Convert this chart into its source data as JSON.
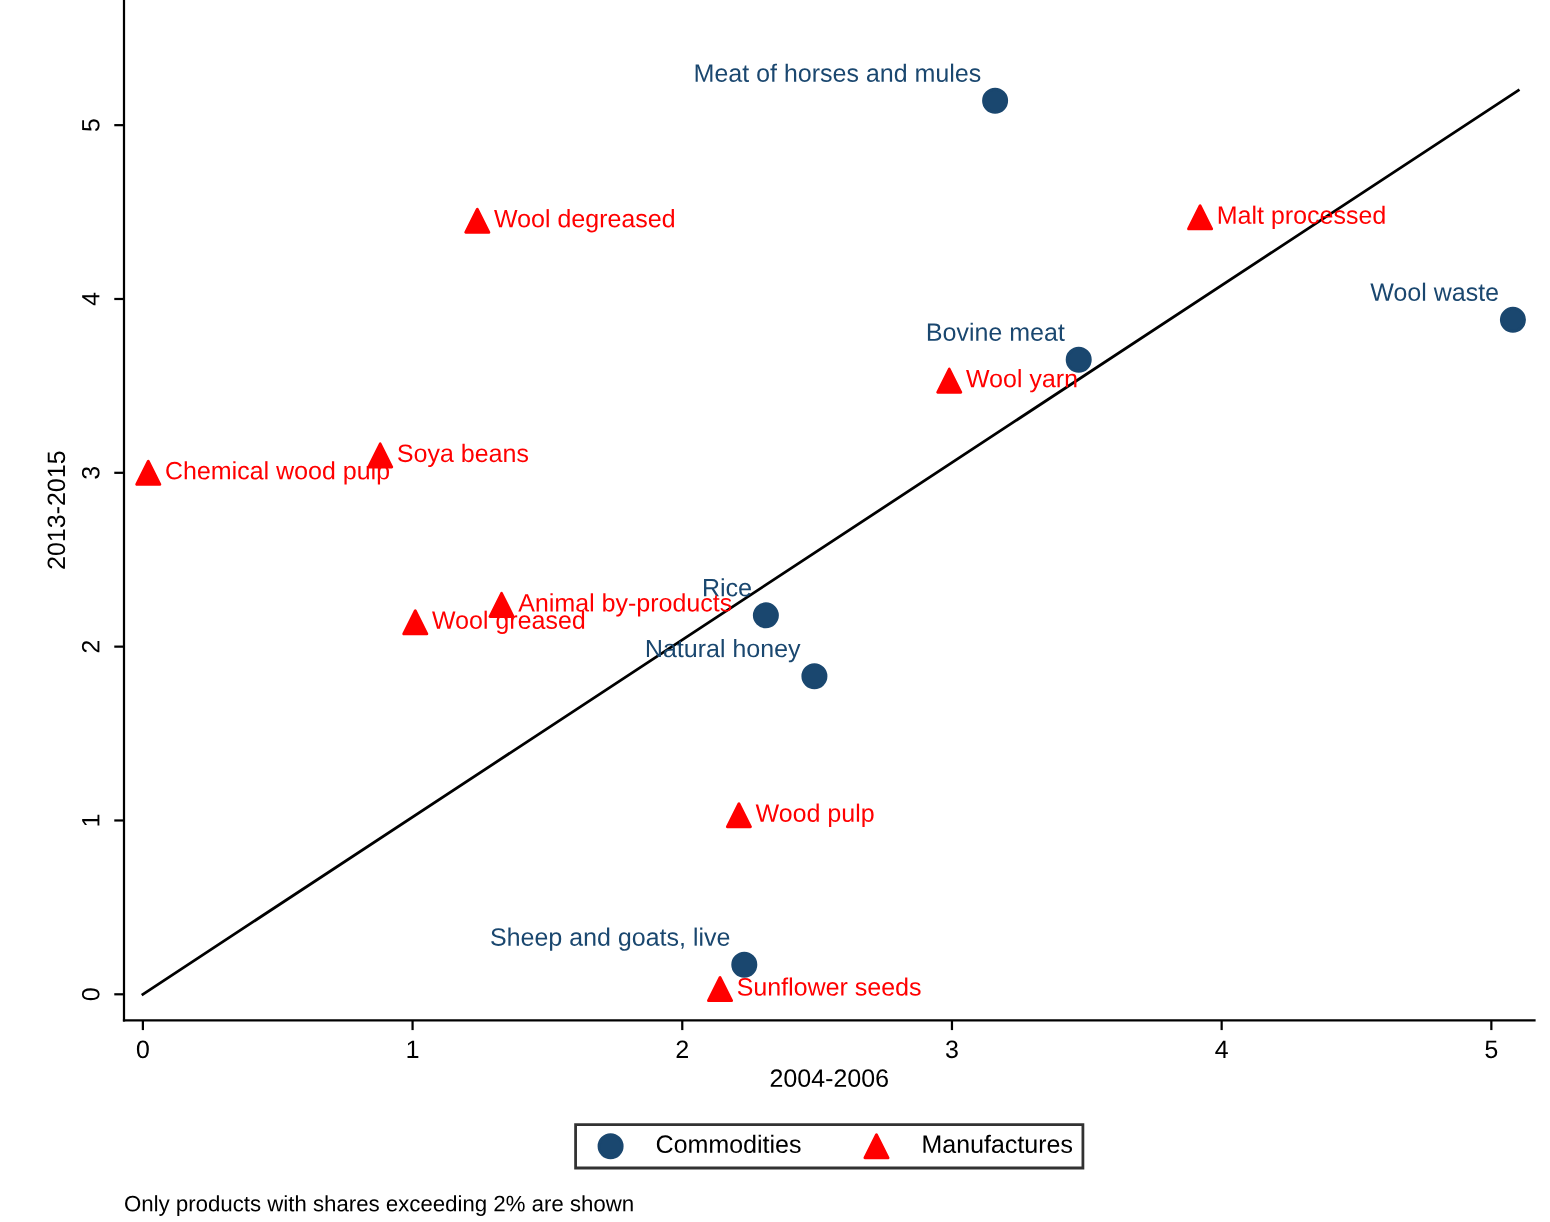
{
  "chart_data": {
    "type": "scatter",
    "xlabel": "2004-2006",
    "ylabel": "2013-2015",
    "xlim": [
      -0.07,
      5.16
    ],
    "ylim": [
      -0.15,
      5.72
    ],
    "xticks": [
      0,
      1,
      2,
      3,
      4,
      5
    ],
    "yticks": [
      0,
      1,
      2,
      3,
      4,
      5
    ],
    "grid": false,
    "legend": "bottom",
    "series": [
      {
        "name": "Commodities",
        "marker": "circle",
        "color": "#1a476f",
        "x": [
          3.16,
          3.47,
          5.08,
          2.31,
          2.49,
          2.23
        ],
        "values": [
          5.14,
          3.65,
          3.88,
          2.18,
          1.83,
          0.17
        ]
      },
      {
        "name": "Manufactures",
        "marker": "triangle",
        "color": "#ff0000",
        "x": [
          1.24,
          3.92,
          2.99,
          0.88,
          0.02,
          1.33,
          1.01,
          2.21,
          2.14
        ],
        "values": [
          4.45,
          4.47,
          3.53,
          3.1,
          3.0,
          2.24,
          2.14,
          1.03,
          0.03
        ]
      },
      {
        "type": "line",
        "marker": "none",
        "color": "#000000",
        "x": [
          0,
          5.1
        ],
        "values": [
          0,
          5.2
        ]
      }
    ],
    "annotations": [
      {
        "text": "Meat of horses and mules",
        "x": 3.16,
        "y": 5.14
      },
      {
        "text": "Bovine meat",
        "x": 3.47,
        "y": 3.65
      },
      {
        "text": "Wool waste",
        "x": 5.08,
        "y": 3.88
      },
      {
        "text": "Rice",
        "x": 2.31,
        "y": 2.18
      },
      {
        "text": "Natural honey",
        "x": 2.49,
        "y": 1.83
      },
      {
        "text": "Sheep and goats, live",
        "x": 2.23,
        "y": 0.17
      },
      {
        "text": "Wool degreased",
        "x": 1.24,
        "y": 4.45
      },
      {
        "text": "Malt processed",
        "x": 3.92,
        "y": 4.47
      },
      {
        "text": "Wool yarn",
        "x": 2.99,
        "y": 3.53
      },
      {
        "text": "Soya beans",
        "x": 0.88,
        "y": 3.1
      },
      {
        "text": "Chemical wood pulp",
        "x": 0.02,
        "y": 3.0
      },
      {
        "text": "Animal by-products",
        "x": 1.33,
        "y": 2.24
      },
      {
        "text": "Wool greased",
        "x": 1.01,
        "y": 2.14
      },
      {
        "text": "Wood pulp",
        "x": 2.21,
        "y": 1.03
      },
      {
        "text": "Sunflower seeds",
        "x": 2.14,
        "y": 0.03
      },
      "Only products with shares exceeding 2% are shown"
    ]
  }
}
